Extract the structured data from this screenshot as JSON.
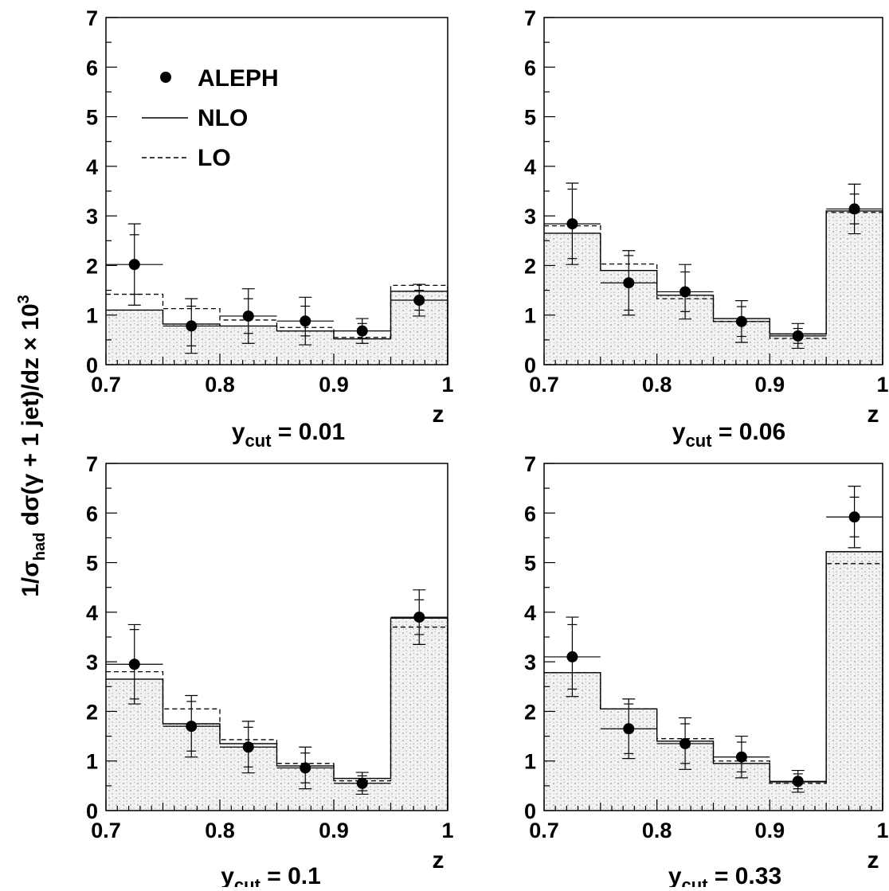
{
  "figure": {
    "ylabel_parts": [
      "1/σ",
      "had",
      " dσ(γ + 1 jet)/dz × 10",
      "3"
    ],
    "xlabel": "z",
    "xlim": [
      0.7,
      1.0
    ],
    "ylim": [
      0,
      7
    ],
    "xticks": [
      "0.7",
      "0.8",
      "0.9",
      "1"
    ],
    "yticks": [
      "0",
      "1",
      "2",
      "3",
      "4",
      "5",
      "6",
      "7"
    ]
  },
  "legend": {
    "placement": "upper-left of first panel",
    "data_label": "ALEPH",
    "nlo_label": "NLO",
    "lo_label": "LO"
  },
  "chart_data": [
    {
      "type": "scatter",
      "panel_label": {
        "prefix": "y",
        "sub": "cut",
        "value": " = 0.01"
      },
      "x_edges": [
        0.7,
        0.75,
        0.8,
        0.85,
        0.9,
        0.95,
        1.0
      ],
      "x": [
        0.725,
        0.775,
        0.825,
        0.875,
        0.925,
        0.975
      ],
      "series": [
        {
          "name": "ALEPH",
          "kind": "points",
          "values": [
            2.02,
            0.78,
            0.98,
            0.88,
            0.68,
            1.3
          ],
          "err_stat": [
            0.6,
            0.4,
            0.35,
            0.3,
            0.15,
            0.2
          ],
          "err_tot": [
            0.82,
            0.55,
            0.55,
            0.48,
            0.25,
            0.32
          ]
        },
        {
          "name": "NLO",
          "kind": "histogram",
          "values": [
            1.1,
            0.82,
            0.78,
            0.68,
            0.52,
            1.48
          ]
        },
        {
          "name": "LO",
          "kind": "histogram-dashed",
          "values": [
            1.42,
            1.13,
            0.9,
            0.75,
            0.55,
            1.6
          ]
        }
      ]
    },
    {
      "type": "scatter",
      "panel_label": {
        "prefix": "y",
        "sub": "cut",
        "value": " = 0.06"
      },
      "x_edges": [
        0.7,
        0.75,
        0.8,
        0.85,
        0.9,
        0.95,
        1.0
      ],
      "x": [
        0.725,
        0.775,
        0.825,
        0.875,
        0.925,
        0.975
      ],
      "series": [
        {
          "name": "ALEPH",
          "kind": "points",
          "values": [
            2.84,
            1.65,
            1.47,
            0.87,
            0.58,
            3.14
          ],
          "err_stat": [
            0.7,
            0.55,
            0.4,
            0.3,
            0.15,
            0.3
          ],
          "err_tot": [
            0.82,
            0.65,
            0.55,
            0.42,
            0.25,
            0.5
          ]
        },
        {
          "name": "NLO",
          "kind": "histogram",
          "values": [
            2.65,
            1.9,
            1.4,
            0.93,
            0.62,
            3.1
          ]
        },
        {
          "name": "LO",
          "kind": "histogram-dashed",
          "values": [
            2.8,
            2.03,
            1.33,
            0.87,
            0.53,
            3.07
          ]
        }
      ]
    },
    {
      "type": "scatter",
      "panel_label": {
        "prefix": "y",
        "sub": "cut",
        "value": " = 0.1"
      },
      "x_edges": [
        0.7,
        0.75,
        0.8,
        0.85,
        0.9,
        0.95,
        1.0
      ],
      "x": [
        0.725,
        0.775,
        0.825,
        0.875,
        0.925,
        0.975
      ],
      "series": [
        {
          "name": "ALEPH",
          "kind": "points",
          "values": [
            2.95,
            1.7,
            1.28,
            0.86,
            0.55,
            3.9
          ],
          "err_stat": [
            0.7,
            0.5,
            0.4,
            0.3,
            0.15,
            0.35
          ],
          "err_tot": [
            0.8,
            0.62,
            0.52,
            0.42,
            0.22,
            0.55
          ]
        },
        {
          "name": "NLO",
          "kind": "histogram",
          "values": [
            2.65,
            1.75,
            1.35,
            0.9,
            0.65,
            3.88
          ]
        },
        {
          "name": "LO",
          "kind": "histogram-dashed",
          "values": [
            2.8,
            2.05,
            1.43,
            0.95,
            0.6,
            3.7
          ]
        }
      ]
    },
    {
      "type": "scatter",
      "panel_label": {
        "prefix": "y",
        "sub": "cut",
        "value": " = 0.33"
      },
      "x_edges": [
        0.7,
        0.75,
        0.8,
        0.85,
        0.9,
        0.95,
        1.0
      ],
      "x": [
        0.725,
        0.775,
        0.825,
        0.875,
        0.925,
        0.975
      ],
      "series": [
        {
          "name": "ALEPH",
          "kind": "points",
          "values": [
            3.1,
            1.65,
            1.35,
            1.08,
            0.59,
            5.92
          ],
          "err_stat": [
            0.65,
            0.5,
            0.4,
            0.3,
            0.15,
            0.4
          ],
          "err_tot": [
            0.8,
            0.6,
            0.52,
            0.42,
            0.22,
            0.62
          ]
        },
        {
          "name": "NLO",
          "kind": "histogram",
          "values": [
            2.78,
            2.05,
            1.4,
            0.95,
            0.58,
            5.22
          ]
        },
        {
          "name": "LO",
          "kind": "histogram-dashed",
          "values": [
            2.78,
            2.05,
            1.45,
            1.0,
            0.55,
            4.98
          ]
        }
      ]
    }
  ]
}
